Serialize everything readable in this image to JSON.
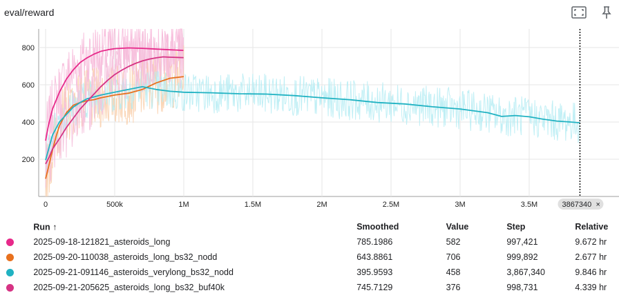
{
  "card": {
    "title": "eval/reward"
  },
  "icons": {
    "fit": "fit-domain-icon",
    "pin": "pin-icon"
  },
  "chart_data": {
    "type": "line",
    "title": "",
    "xlabel": "",
    "ylabel": "",
    "xlim": [
      -50000,
      4150000
    ],
    "ylim": [
      0,
      900
    ],
    "x_ticks": [
      0,
      500000,
      1000000,
      1500000,
      2000000,
      2500000,
      3000000,
      3500000
    ],
    "x_tick_labels": [
      "0",
      "500k",
      "1M",
      "1.5M",
      "2M",
      "2.5M",
      "3M",
      "3.5M"
    ],
    "y_ticks": [
      200,
      400,
      600,
      800
    ],
    "y_tick_labels": [
      "200",
      "400",
      "600",
      "800"
    ],
    "grid": true,
    "legend": "table-below",
    "cursor": {
      "x": 3867340,
      "label": "3867340"
    },
    "series": [
      {
        "name": "2025-09-18-121821_asteroids_long",
        "color": "#e7298a",
        "raw_color": "#f7b6d8",
        "points": [
          [
            0,
            300
          ],
          [
            20000,
            380
          ],
          [
            50000,
            470
          ],
          [
            100000,
            560
          ],
          [
            150000,
            630
          ],
          [
            200000,
            680
          ],
          [
            250000,
            720
          ],
          [
            300000,
            745
          ],
          [
            350000,
            765
          ],
          [
            400000,
            780
          ],
          [
            450000,
            788
          ],
          [
            500000,
            794
          ],
          [
            600000,
            798
          ],
          [
            700000,
            796
          ],
          [
            800000,
            792
          ],
          [
            900000,
            788
          ],
          [
            997421,
            785
          ]
        ]
      },
      {
        "name": "2025-09-20-110038_asteroids_long_bs32_nodd",
        "color": "#e8711e",
        "raw_color": "#f9cfaa",
        "points": [
          [
            0,
            95
          ],
          [
            25000,
            170
          ],
          [
            50000,
            250
          ],
          [
            75000,
            320
          ],
          [
            100000,
            380
          ],
          [
            150000,
            450
          ],
          [
            200000,
            490
          ],
          [
            250000,
            505
          ],
          [
            300000,
            515
          ],
          [
            350000,
            520
          ],
          [
            400000,
            530
          ],
          [
            500000,
            545
          ],
          [
            600000,
            555
          ],
          [
            700000,
            575
          ],
          [
            800000,
            610
          ],
          [
            900000,
            635
          ],
          [
            999892,
            644
          ]
        ]
      },
      {
        "name": "2025-09-21-091146_asteroids_verylong_bs32_nodd",
        "color": "#20b2c2",
        "raw_color": "#b5ecf3",
        "points": [
          [
            0,
            195
          ],
          [
            50000,
            330
          ],
          [
            100000,
            400
          ],
          [
            150000,
            440
          ],
          [
            200000,
            480
          ],
          [
            250000,
            505
          ],
          [
            300000,
            525
          ],
          [
            400000,
            545
          ],
          [
            500000,
            560
          ],
          [
            600000,
            575
          ],
          [
            700000,
            590
          ],
          [
            800000,
            575
          ],
          [
            900000,
            565
          ],
          [
            1000000,
            560
          ],
          [
            1200000,
            557
          ],
          [
            1400000,
            552
          ],
          [
            1600000,
            550
          ],
          [
            1800000,
            542
          ],
          [
            2000000,
            530
          ],
          [
            2200000,
            520
          ],
          [
            2400000,
            505
          ],
          [
            2600000,
            497
          ],
          [
            2800000,
            482
          ],
          [
            3000000,
            470
          ],
          [
            3200000,
            450
          ],
          [
            3300000,
            430
          ],
          [
            3400000,
            435
          ],
          [
            3500000,
            428
          ],
          [
            3600000,
            415
          ],
          [
            3700000,
            405
          ],
          [
            3800000,
            400
          ],
          [
            3867340,
            396
          ]
        ]
      },
      {
        "name": "2025-09-21-205625_asteroids_long_bs32_buf40k",
        "color": "#d63384",
        "raw_color": "#f5bddb",
        "points": [
          [
            0,
            175
          ],
          [
            25000,
            210
          ],
          [
            50000,
            255
          ],
          [
            100000,
            310
          ],
          [
            150000,
            370
          ],
          [
            200000,
            420
          ],
          [
            250000,
            470
          ],
          [
            300000,
            510
          ],
          [
            350000,
            550
          ],
          [
            400000,
            590
          ],
          [
            450000,
            625
          ],
          [
            500000,
            655
          ],
          [
            550000,
            678
          ],
          [
            600000,
            698
          ],
          [
            650000,
            715
          ],
          [
            700000,
            728
          ],
          [
            750000,
            738
          ],
          [
            800000,
            745
          ],
          [
            850000,
            750
          ],
          [
            900000,
            748
          ],
          [
            950000,
            747
          ],
          [
            998731,
            746
          ]
        ]
      }
    ]
  },
  "table": {
    "headers": {
      "run": "Run",
      "sort": "↑",
      "smoothed": "Smoothed",
      "value": "Value",
      "step": "Step",
      "relative": "Relative"
    },
    "rows": [
      {
        "color": "#e7298a",
        "run": "2025-09-18-121821_asteroids_long",
        "smoothed": "785.1986",
        "value": "582",
        "step": "997,421",
        "relative": "9.672 hr"
      },
      {
        "color": "#e8711e",
        "run": "2025-09-20-110038_asteroids_long_bs32_nodd",
        "smoothed": "643.8861",
        "value": "706",
        "step": "999,892",
        "relative": "2.677 hr"
      },
      {
        "color": "#20b2c2",
        "run": "2025-09-21-091146_asteroids_verylong_bs32_nodd",
        "smoothed": "395.9593",
        "value": "458",
        "step": "3,867,340",
        "relative": "9.846 hr"
      },
      {
        "color": "#d63384",
        "run": "2025-09-21-205625_asteroids_long_bs32_buf40k",
        "smoothed": "745.7129",
        "value": "376",
        "step": "998,731",
        "relative": "4.339 hr"
      }
    ]
  }
}
